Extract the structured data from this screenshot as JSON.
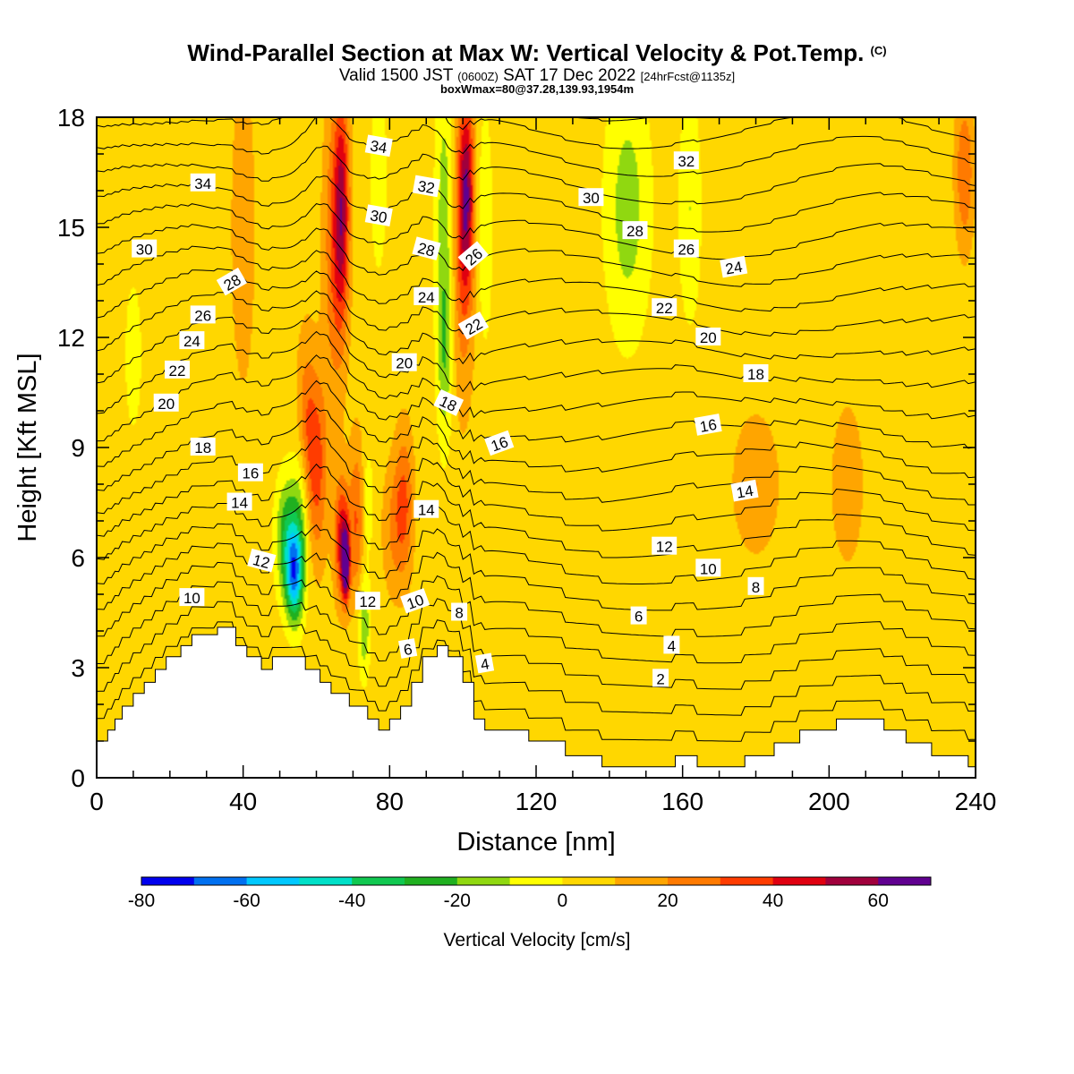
{
  "title": {
    "main": "Wind-Parallel Section at Max W: Vertical Velocity & Pot.Temp.",
    "copyright": "(C)",
    "valid_prefix": "Valid 1500 JST",
    "valid_z": "(0600Z)",
    "valid_date": "SAT 17 Dec 2022",
    "valid_fcst": "[24hrFcst@1135z]",
    "boxinfo": "boxWmax=80@37.28,139.93,1954m"
  },
  "chart_data": {
    "type": "heatmap",
    "xlabel": "Distance [nm]",
    "ylabel": "Height [Kft MSL]",
    "xlim": [
      0,
      240
    ],
    "ylim": [
      0,
      18
    ],
    "x_ticks": [
      0,
      40,
      80,
      120,
      160,
      200,
      240
    ],
    "y_ticks": [
      0,
      3,
      6,
      9,
      12,
      15,
      18
    ],
    "colorbar": {
      "title": "Vertical Velocity [cm/s]",
      "bounds": [
        -80,
        70
      ],
      "step": 10,
      "tick_labels": [
        -80,
        -60,
        -40,
        -20,
        0,
        20,
        40,
        60
      ],
      "colors": [
        "#0000ee",
        "#0070f0",
        "#00c8ff",
        "#00e0c8",
        "#10c850",
        "#20b020",
        "#90d810",
        "#ffff00",
        "#ffd700",
        "#ffa500",
        "#ff7a00",
        "#ff3c00",
        "#e00010",
        "#a0003c",
        "#600090"
      ]
    },
    "background_value": 5,
    "terrain": [
      [
        0,
        1
      ],
      [
        3,
        1
      ],
      [
        3,
        1.3
      ],
      [
        5,
        1.3
      ],
      [
        5,
        1.6
      ],
      [
        7,
        1.6
      ],
      [
        7,
        1.95
      ],
      [
        10,
        1.95
      ],
      [
        10,
        2.3
      ],
      [
        13,
        2.3
      ],
      [
        13,
        2.6
      ],
      [
        16,
        2.6
      ],
      [
        16,
        2.95
      ],
      [
        19,
        2.95
      ],
      [
        19,
        3.3
      ],
      [
        23,
        3.3
      ],
      [
        23,
        3.6
      ],
      [
        26,
        3.6
      ],
      [
        26,
        3.9
      ],
      [
        33,
        3.9
      ],
      [
        33,
        4.1
      ],
      [
        38,
        4.1
      ],
      [
        38,
        3.6
      ],
      [
        41,
        3.6
      ],
      [
        41,
        3.3
      ],
      [
        45,
        3.3
      ],
      [
        45,
        2.95
      ],
      [
        48,
        2.95
      ],
      [
        48,
        3.3
      ],
      [
        57,
        3.3
      ],
      [
        57,
        2.95
      ],
      [
        61,
        2.95
      ],
      [
        61,
        2.6
      ],
      [
        64,
        2.6
      ],
      [
        64,
        2.3
      ],
      [
        69,
        2.3
      ],
      [
        69,
        1.95
      ],
      [
        74,
        1.95
      ],
      [
        74,
        1.6
      ],
      [
        77,
        1.6
      ],
      [
        77,
        1.3
      ],
      [
        80,
        1.3
      ],
      [
        80,
        1.6
      ],
      [
        83,
        1.6
      ],
      [
        83,
        1.95
      ],
      [
        86,
        1.95
      ],
      [
        86,
        2.6
      ],
      [
        89,
        2.6
      ],
      [
        89,
        3.3
      ],
      [
        93,
        3.3
      ],
      [
        93,
        3.6
      ],
      [
        96,
        3.6
      ],
      [
        96,
        3.3
      ],
      [
        100,
        3.3
      ],
      [
        100,
        2.6
      ],
      [
        103,
        2.6
      ],
      [
        103,
        1.6
      ],
      [
        106,
        1.6
      ],
      [
        106,
        1.3
      ],
      [
        118,
        1.3
      ],
      [
        118,
        1
      ],
      [
        128,
        1
      ],
      [
        128,
        0.6
      ],
      [
        138,
        0.6
      ],
      [
        138,
        0.3
      ],
      [
        158,
        0.3
      ],
      [
        158,
        0.6
      ],
      [
        164,
        0.6
      ],
      [
        164,
        0.3
      ],
      [
        177,
        0.3
      ],
      [
        177,
        0.6
      ],
      [
        185,
        0.6
      ],
      [
        185,
        0.95
      ],
      [
        192,
        0.95
      ],
      [
        192,
        1.3
      ],
      [
        202,
        1.3
      ],
      [
        202,
        1.6
      ],
      [
        215,
        1.6
      ],
      [
        215,
        1.3
      ],
      [
        221,
        1.3
      ],
      [
        221,
        0.95
      ],
      [
        228,
        0.95
      ],
      [
        228,
        0.6
      ],
      [
        238,
        0.6
      ],
      [
        238,
        0.3
      ],
      [
        240,
        0.3
      ]
    ],
    "features": [
      {
        "x": 10,
        "y": 11.5,
        "sx": 2,
        "sy": 1.8,
        "value": -15
      },
      {
        "x": 40,
        "y": 15,
        "sx": 3,
        "sy": 4,
        "value": 15
      },
      {
        "x": 52,
        "y": 6.5,
        "sx": 3,
        "sy": 1.6,
        "value": -35
      },
      {
        "x": 54,
        "y": 5.5,
        "sx": 2.2,
        "sy": 1.2,
        "value": -55
      },
      {
        "x": 56,
        "y": 7.2,
        "sx": 2.5,
        "sy": 2.2,
        "value": -25
      },
      {
        "x": 57,
        "y": 9.5,
        "sx": 2.5,
        "sy": 2.5,
        "value": 20
      },
      {
        "x": 60,
        "y": 8.5,
        "sx": 3,
        "sy": 2.5,
        "value": 30
      },
      {
        "x": 65,
        "y": 14.5,
        "sx": 3,
        "sy": 4,
        "value": 25
      },
      {
        "x": 67,
        "y": 15.5,
        "sx": 2,
        "sy": 3,
        "value": 40
      },
      {
        "x": 67,
        "y": 6.5,
        "sx": 2,
        "sy": 1.6,
        "value": 42
      },
      {
        "x": 68,
        "y": 5.8,
        "sx": 1,
        "sy": 0.9,
        "value": 65
      },
      {
        "x": 71,
        "y": 7,
        "sx": 2,
        "sy": 2.2,
        "value": 25
      },
      {
        "x": 73,
        "y": 4.2,
        "sx": 1.6,
        "sy": 1.4,
        "value": -25
      },
      {
        "x": 74,
        "y": 7.5,
        "sx": 1.5,
        "sy": 1.3,
        "value": -15
      },
      {
        "x": 77,
        "y": 16.5,
        "sx": 2,
        "sy": 2.5,
        "value": -15
      },
      {
        "x": 81,
        "y": 6.8,
        "sx": 3,
        "sy": 1.8,
        "value": 15
      },
      {
        "x": 84,
        "y": 7.5,
        "sx": 2.5,
        "sy": 2,
        "value": 25
      },
      {
        "x": 95,
        "y": 15.5,
        "sx": 2.5,
        "sy": 4,
        "value": -20
      },
      {
        "x": 95,
        "y": 11.5,
        "sx": 2,
        "sy": 2.5,
        "value": -20
      },
      {
        "x": 100,
        "y": 14.5,
        "sx": 3,
        "sy": 4,
        "value": 25
      },
      {
        "x": 101,
        "y": 16,
        "sx": 2,
        "sy": 2.5,
        "value": 40
      },
      {
        "x": 106,
        "y": 15,
        "sx": 2,
        "sy": 3,
        "value": -15
      },
      {
        "x": 145,
        "y": 15.5,
        "sx": 6,
        "sy": 3.5,
        "value": -20
      },
      {
        "x": 162,
        "y": 15.5,
        "sx": 3,
        "sy": 3,
        "value": -15
      },
      {
        "x": 180,
        "y": 8,
        "sx": 6,
        "sy": 1.8,
        "value": 15
      },
      {
        "x": 205,
        "y": 8,
        "sx": 4,
        "sy": 2,
        "value": 15
      },
      {
        "x": 237,
        "y": 16.5,
        "sx": 2.5,
        "sy": 2,
        "value": 25
      },
      {
        "x": 130,
        "y": 8,
        "sx": 25,
        "sy": 3,
        "value": 1
      },
      {
        "x": 150,
        "y": 2,
        "sx": 25,
        "sy": 1.5,
        "value": -1
      }
    ],
    "theta_contours": [
      2,
      4,
      6,
      8,
      10,
      12,
      14,
      16,
      18,
      20,
      22,
      24,
      26,
      28,
      30,
      32,
      34,
      36,
      38,
      40,
      42,
      44,
      46,
      48
    ],
    "theta_labels": [
      {
        "text": "34",
        "x": 29,
        "y": 16.2
      },
      {
        "text": "30",
        "x": 13,
        "y": 14.4
      },
      {
        "text": "28",
        "x": 37,
        "y": 13.5,
        "rot": -30
      },
      {
        "text": "26",
        "x": 29,
        "y": 12.6
      },
      {
        "text": "24",
        "x": 26,
        "y": 11.9
      },
      {
        "text": "22",
        "x": 22,
        "y": 11.1
      },
      {
        "text": "20",
        "x": 19,
        "y": 10.2
      },
      {
        "text": "18",
        "x": 29,
        "y": 9
      },
      {
        "text": "16",
        "x": 42,
        "y": 8.3
      },
      {
        "text": "14",
        "x": 39,
        "y": 7.5
      },
      {
        "text": "12",
        "x": 45,
        "y": 5.9,
        "rot": 15
      },
      {
        "text": "10",
        "x": 26,
        "y": 4.9
      },
      {
        "text": "34",
        "x": 77,
        "y": 17.2,
        "rot": 10
      },
      {
        "text": "30",
        "x": 77,
        "y": 15.3,
        "rot": 10
      },
      {
        "text": "32",
        "x": 90,
        "y": 16.1,
        "rot": 10
      },
      {
        "text": "28",
        "x": 90,
        "y": 14.4,
        "rot": 15
      },
      {
        "text": "24",
        "x": 90,
        "y": 13.1
      },
      {
        "text": "20",
        "x": 84,
        "y": 11.3
      },
      {
        "text": "26",
        "x": 103,
        "y": 14.2,
        "rot": -40
      },
      {
        "text": "22",
        "x": 103,
        "y": 12.3,
        "rot": -30
      },
      {
        "text": "18",
        "x": 96,
        "y": 10.2,
        "rot": 25
      },
      {
        "text": "16",
        "x": 110,
        "y": 9.1,
        "rot": -20
      },
      {
        "text": "14",
        "x": 90,
        "y": 7.3
      },
      {
        "text": "12",
        "x": 74,
        "y": 4.8
      },
      {
        "text": "10",
        "x": 87,
        "y": 4.8,
        "rot": -20
      },
      {
        "text": "8",
        "x": 99,
        "y": 4.5
      },
      {
        "text": "6",
        "x": 85,
        "y": 3.5,
        "rot": -10
      },
      {
        "text": "4",
        "x": 106,
        "y": 3.1,
        "rot": -10
      },
      {
        "text": "30",
        "x": 135,
        "y": 15.8
      },
      {
        "text": "32",
        "x": 161,
        "y": 16.8
      },
      {
        "text": "28",
        "x": 147,
        "y": 14.9
      },
      {
        "text": "26",
        "x": 161,
        "y": 14.4
      },
      {
        "text": "24",
        "x": 174,
        "y": 13.9,
        "rot": -10
      },
      {
        "text": "22",
        "x": 155,
        "y": 12.8
      },
      {
        "text": "20",
        "x": 167,
        "y": 12
      },
      {
        "text": "18",
        "x": 180,
        "y": 11
      },
      {
        "text": "16",
        "x": 167,
        "y": 9.6,
        "rot": -10
      },
      {
        "text": "14",
        "x": 177,
        "y": 7.8,
        "rot": -10
      },
      {
        "text": "12",
        "x": 155,
        "y": 6.3
      },
      {
        "text": "10",
        "x": 167,
        "y": 5.7
      },
      {
        "text": "8",
        "x": 180,
        "y": 5.2
      },
      {
        "text": "6",
        "x": 148,
        "y": 4.4
      },
      {
        "text": "4",
        "x": 157,
        "y": 3.6
      },
      {
        "text": "2",
        "x": 154,
        "y": 2.7
      }
    ]
  }
}
